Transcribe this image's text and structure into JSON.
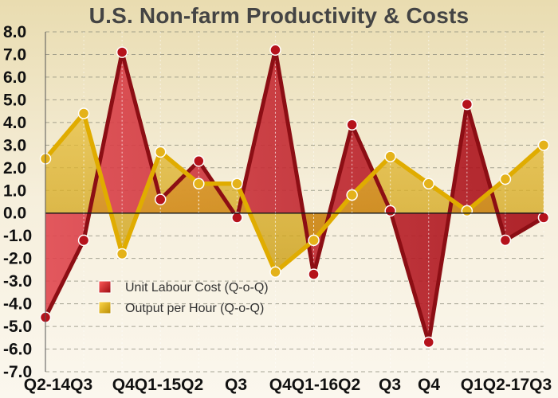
{
  "chart_data": {
    "type": "area",
    "title": "U.S. Non-farm Productivity & Costs",
    "categories": [
      "Q2-14",
      "Q3",
      "Q4",
      "Q1-15",
      "Q2",
      "Q3",
      "Q4",
      "Q1-16",
      "Q2",
      "Q3",
      "Q4",
      "Q1",
      "Q2-17",
      "Q3"
    ],
    "x_tick_labels": [
      "Q2-14Q3",
      "Q4Q1-15Q2",
      "Q3",
      "Q4Q1-16Q2",
      "Q3",
      "Q4",
      "Q1Q2-17Q3"
    ],
    "ylim": [
      -7,
      8
    ],
    "y_ticks": [
      "8.0",
      "7.0",
      "6.0",
      "5.0",
      "4.0",
      "3.0",
      "2.0",
      "1.0",
      "0.0",
      "-1.0",
      "-2.0",
      "-3.0",
      "-4.0",
      "-5.0",
      "-6.0",
      "-7.0"
    ],
    "grid": true,
    "legend_position": "bottom-left",
    "series": [
      {
        "name": "Unit Labour Cost (Q-o-Q)",
        "color": "#c8161f",
        "values": [
          -4.6,
          -1.2,
          7.1,
          0.6,
          2.3,
          -0.2,
          7.2,
          -2.7,
          3.9,
          0.1,
          -5.7,
          4.8,
          -1.2,
          -0.2
        ]
      },
      {
        "name": "Output per Hour (Q-o-Q)",
        "color": "#e0ac00",
        "values": [
          2.4,
          4.4,
          -1.8,
          2.7,
          1.3,
          1.3,
          -2.6,
          -1.2,
          0.8,
          2.5,
          1.3,
          0.1,
          1.5,
          3.0
        ]
      }
    ]
  }
}
